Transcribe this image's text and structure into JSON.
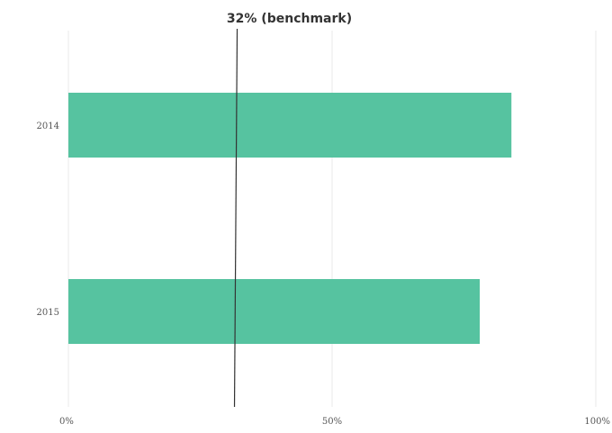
{
  "chart_data": {
    "type": "bar",
    "orientation": "horizontal",
    "categories": [
      "2014",
      "2015"
    ],
    "values": [
      84,
      78
    ],
    "xlim": [
      0,
      100
    ],
    "x_ticks": [
      "0%",
      "50%",
      "100%"
    ],
    "grid": true,
    "benchmark": {
      "value": 32,
      "label": "32% (benchmark)"
    },
    "colors": {
      "bar": "#56c3a0",
      "grid": "#e8e8e8",
      "benchmark_line": "#333333"
    }
  }
}
